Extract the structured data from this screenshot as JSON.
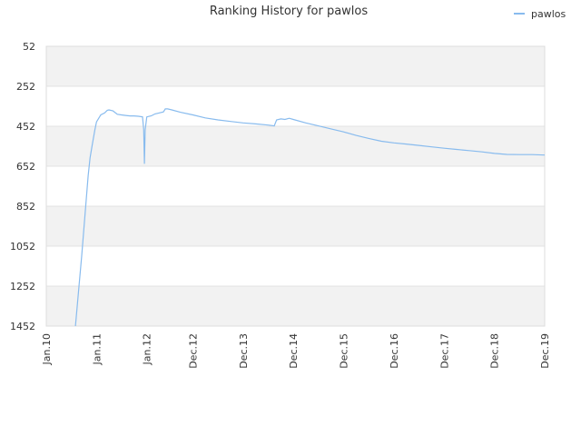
{
  "chart_data": {
    "type": "line",
    "title": "Ranking History for pawlos",
    "xlabel": "",
    "ylabel": "",
    "y_inverted": true,
    "ylim": [
      1452,
      52
    ],
    "y_ticks": [
      52,
      252,
      452,
      652,
      852,
      1052,
      1252,
      1452
    ],
    "y_tick_labels": [
      "52",
      "252",
      "452",
      "652",
      "852",
      "1052",
      "1252",
      "1452"
    ],
    "x_range": [
      "2010-01-01",
      "2019-12-01"
    ],
    "x_ticks": [
      "2010-01-01",
      "2011-01-01",
      "2012-01-01",
      "2012-12-01",
      "2013-12-01",
      "2014-12-01",
      "2015-12-01",
      "2016-12-01",
      "2017-12-01",
      "2018-12-01",
      "2019-12-01"
    ],
    "x_tick_labels": [
      "Jan.10",
      "Jan.11",
      "Jan.12",
      "Dec.12",
      "Dec.13",
      "Dec.14",
      "Dec.15",
      "Dec.16",
      "Dec.17",
      "Dec.18",
      "Dec.19"
    ],
    "grid": true,
    "legend_position": "top-right",
    "series": [
      {
        "name": "pawlos",
        "color": "#88bbee",
        "points": [
          [
            "2010-08-01",
            1452
          ],
          [
            "2010-09-15",
            1100
          ],
          [
            "2010-11-01",
            700
          ],
          [
            "2010-11-15",
            610
          ],
          [
            "2010-12-01",
            545
          ],
          [
            "2010-12-20",
            470
          ],
          [
            "2011-01-01",
            430
          ],
          [
            "2011-02-01",
            395
          ],
          [
            "2011-03-01",
            385
          ],
          [
            "2011-03-20",
            372
          ],
          [
            "2011-04-01",
            370
          ],
          [
            "2011-05-01",
            375
          ],
          [
            "2011-06-01",
            392
          ],
          [
            "2011-07-01",
            395
          ],
          [
            "2011-08-01",
            398
          ],
          [
            "2011-09-01",
            400
          ],
          [
            "2011-10-01",
            400
          ],
          [
            "2011-11-01",
            402
          ],
          [
            "2011-12-01",
            405
          ],
          [
            "2011-12-10",
            470
          ],
          [
            "2011-12-15",
            640
          ],
          [
            "2011-12-20",
            470
          ],
          [
            "2012-01-01",
            405
          ],
          [
            "2012-02-01",
            400
          ],
          [
            "2012-03-01",
            390
          ],
          [
            "2012-04-01",
            385
          ],
          [
            "2012-05-01",
            380
          ],
          [
            "2012-05-15",
            365
          ],
          [
            "2012-06-01",
            365
          ],
          [
            "2012-07-01",
            370
          ],
          [
            "2012-09-01",
            382
          ],
          [
            "2012-12-01",
            395
          ],
          [
            "2013-03-01",
            410
          ],
          [
            "2013-06-01",
            420
          ],
          [
            "2013-09-01",
            428
          ],
          [
            "2013-12-01",
            435
          ],
          [
            "2014-03-01",
            440
          ],
          [
            "2014-06-01",
            446
          ],
          [
            "2014-07-15",
            450
          ],
          [
            "2014-08-01",
            420
          ],
          [
            "2014-09-01",
            415
          ],
          [
            "2014-10-01",
            418
          ],
          [
            "2014-11-01",
            412
          ],
          [
            "2014-12-01",
            418
          ],
          [
            "2015-03-01",
            435
          ],
          [
            "2015-06-01",
            450
          ],
          [
            "2015-09-01",
            465
          ],
          [
            "2015-12-01",
            480
          ],
          [
            "2016-03-01",
            498
          ],
          [
            "2016-06-01",
            513
          ],
          [
            "2016-09-01",
            527
          ],
          [
            "2016-12-01",
            535
          ],
          [
            "2017-03-01",
            541
          ],
          [
            "2017-06-01",
            548
          ],
          [
            "2017-09-01",
            555
          ],
          [
            "2017-12-01",
            562
          ],
          [
            "2018-03-01",
            568
          ],
          [
            "2018-06-01",
            574
          ],
          [
            "2018-09-01",
            580
          ],
          [
            "2018-12-01",
            588
          ],
          [
            "2019-03-01",
            593
          ],
          [
            "2019-06-01",
            594
          ],
          [
            "2019-09-01",
            594
          ],
          [
            "2019-12-01",
            596
          ],
          [
            "2020-03-01",
            598
          ],
          [
            "2020-04-15",
            600
          ]
        ]
      }
    ]
  }
}
